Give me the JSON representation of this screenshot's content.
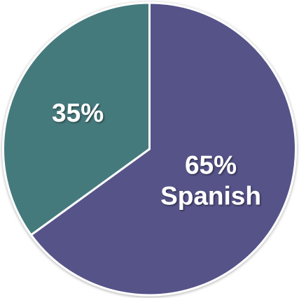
{
  "chart_data": {
    "type": "pie",
    "title": "",
    "slices": [
      {
        "label": "Spanish",
        "value": 65,
        "value_label": "65%",
        "color": "#555288"
      },
      {
        "label": "",
        "value": 35,
        "value_label": "35%",
        "color": "#457a7d"
      }
    ],
    "legend": "none"
  }
}
